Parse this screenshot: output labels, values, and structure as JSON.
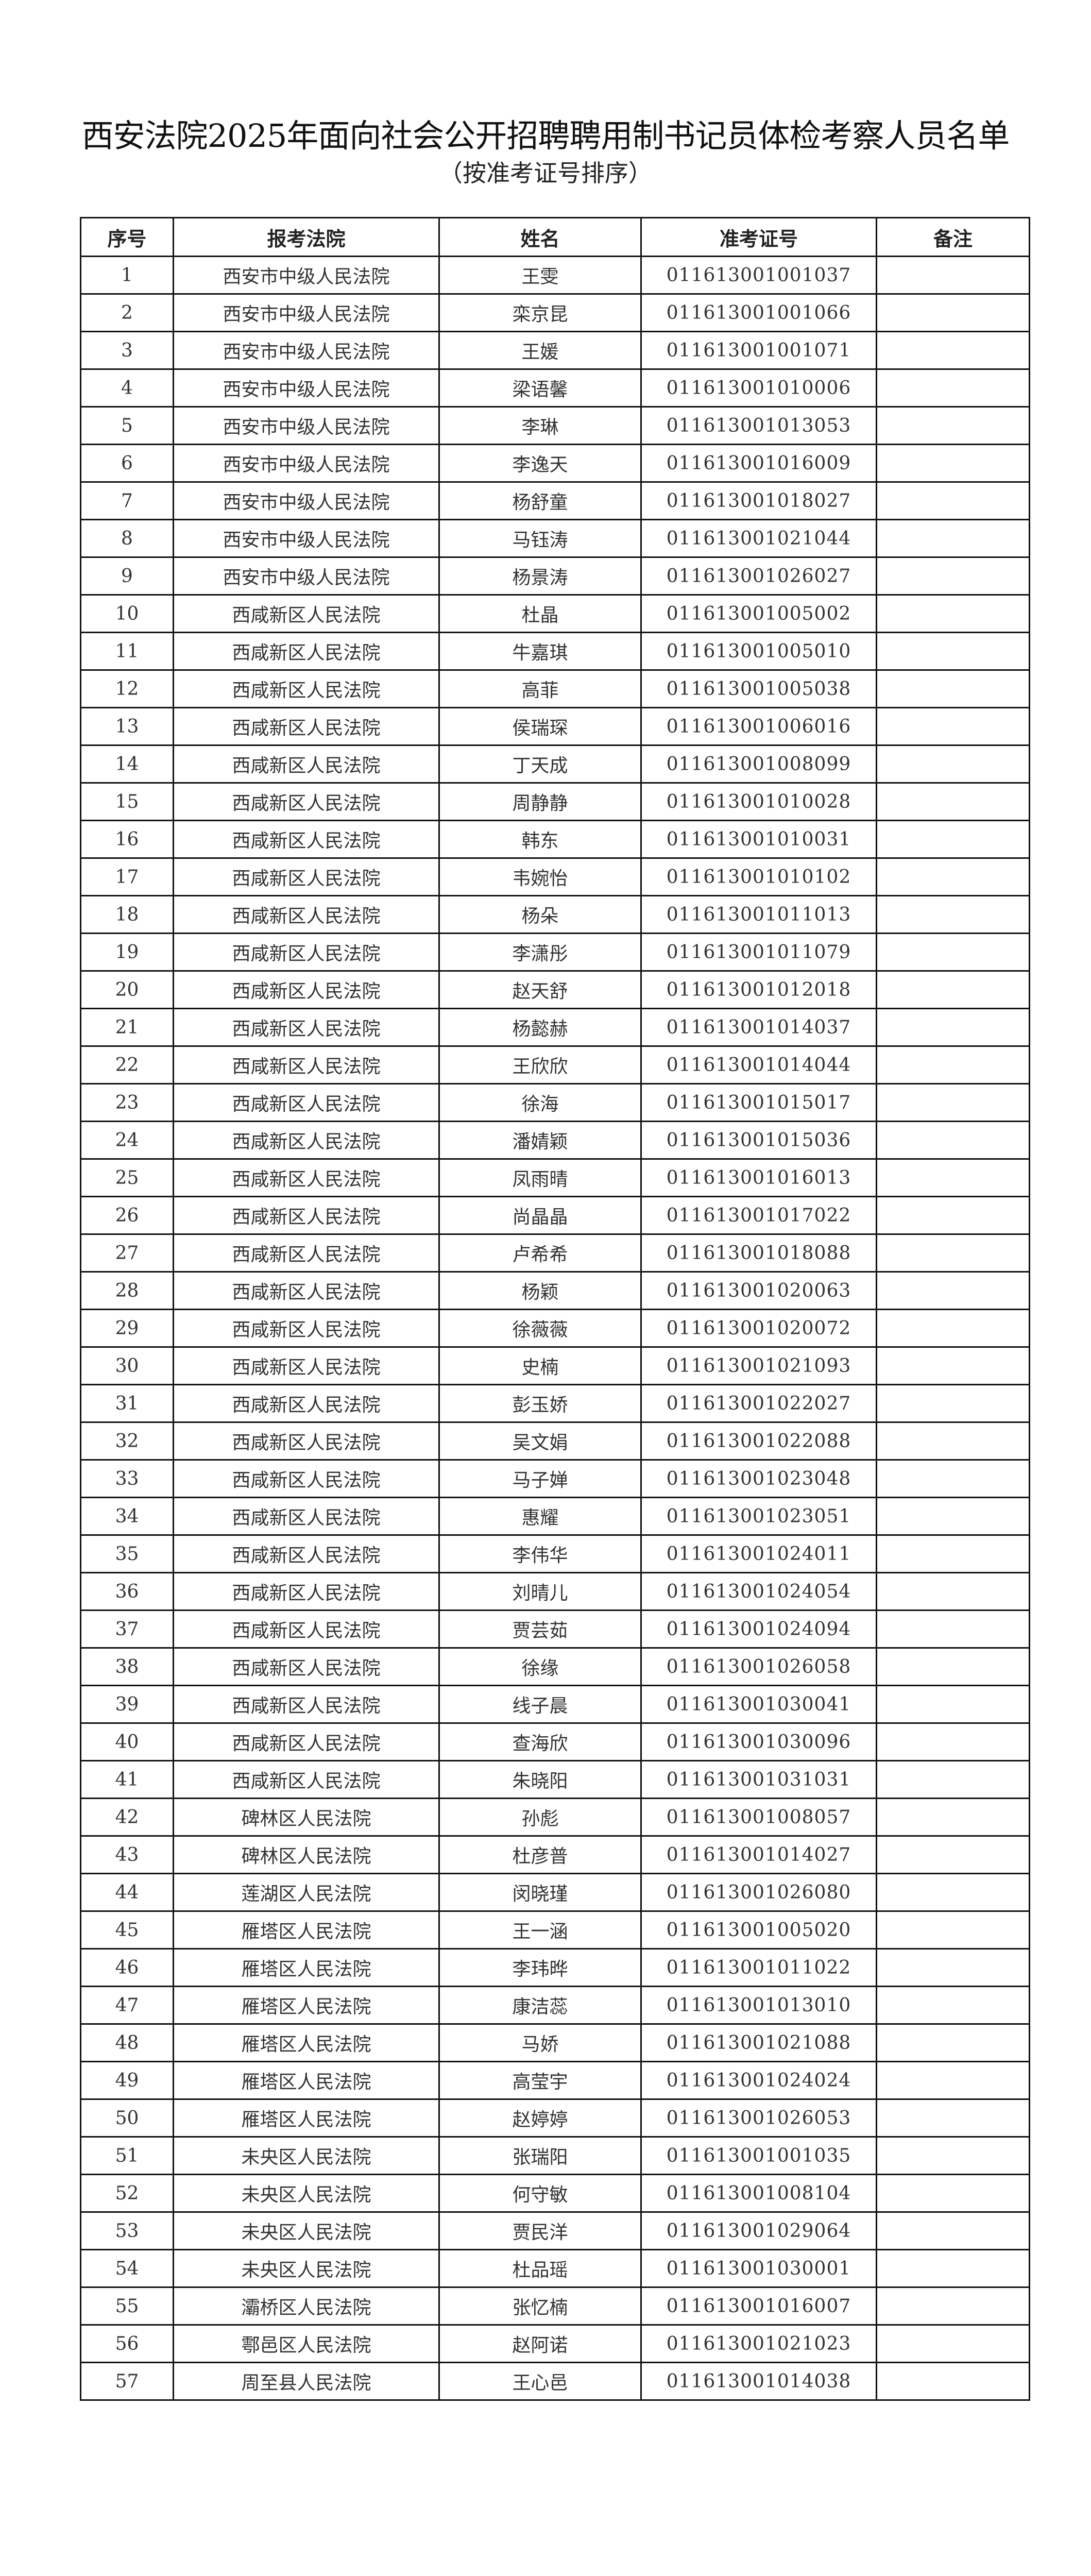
{
  "title": "西安法院2025年面向社会公开招聘聘用制书记员体检考察人员名单",
  "subtitle": "（按准考证号排序）",
  "table": {
    "headers": [
      "序号",
      "报考法院",
      "姓名",
      "准考证号",
      "备注"
    ],
    "rows": [
      [
        "1",
        "西安市中级人民法院",
        "王雯",
        "011613001001037",
        ""
      ],
      [
        "2",
        "西安市中级人民法院",
        "栾京昆",
        "011613001001066",
        ""
      ],
      [
        "3",
        "西安市中级人民法院",
        "王媛",
        "011613001001071",
        ""
      ],
      [
        "4",
        "西安市中级人民法院",
        "梁语馨",
        "011613001010006",
        ""
      ],
      [
        "5",
        "西安市中级人民法院",
        "李琳",
        "011613001013053",
        ""
      ],
      [
        "6",
        "西安市中级人民法院",
        "李逸天",
        "011613001016009",
        ""
      ],
      [
        "7",
        "西安市中级人民法院",
        "杨舒童",
        "011613001018027",
        ""
      ],
      [
        "8",
        "西安市中级人民法院",
        "马钰涛",
        "011613001021044",
        ""
      ],
      [
        "9",
        "西安市中级人民法院",
        "杨景涛",
        "011613001026027",
        ""
      ],
      [
        "10",
        "西咸新区人民法院",
        "杜晶",
        "011613001005002",
        ""
      ],
      [
        "11",
        "西咸新区人民法院",
        "牛嘉琪",
        "011613001005010",
        ""
      ],
      [
        "12",
        "西咸新区人民法院",
        "高菲",
        "011613001005038",
        ""
      ],
      [
        "13",
        "西咸新区人民法院",
        "侯瑞琛",
        "011613001006016",
        ""
      ],
      [
        "14",
        "西咸新区人民法院",
        "丁天成",
        "011613001008099",
        ""
      ],
      [
        "15",
        "西咸新区人民法院",
        "周静静",
        "011613001010028",
        ""
      ],
      [
        "16",
        "西咸新区人民法院",
        "韩东",
        "011613001010031",
        ""
      ],
      [
        "17",
        "西咸新区人民法院",
        "韦婉怡",
        "011613001010102",
        ""
      ],
      [
        "18",
        "西咸新区人民法院",
        "杨朵",
        "011613001011013",
        ""
      ],
      [
        "19",
        "西咸新区人民法院",
        "李潇彤",
        "011613001011079",
        ""
      ],
      [
        "20",
        "西咸新区人民法院",
        "赵天舒",
        "011613001012018",
        ""
      ],
      [
        "21",
        "西咸新区人民法院",
        "杨懿赫",
        "011613001014037",
        ""
      ],
      [
        "22",
        "西咸新区人民法院",
        "王欣欣",
        "011613001014044",
        ""
      ],
      [
        "23",
        "西咸新区人民法院",
        "徐海",
        "011613001015017",
        ""
      ],
      [
        "24",
        "西咸新区人民法院",
        "潘婧颖",
        "011613001015036",
        ""
      ],
      [
        "25",
        "西咸新区人民法院",
        "凤雨晴",
        "011613001016013",
        ""
      ],
      [
        "26",
        "西咸新区人民法院",
        "尚晶晶",
        "011613001017022",
        ""
      ],
      [
        "27",
        "西咸新区人民法院",
        "卢希希",
        "011613001018088",
        ""
      ],
      [
        "28",
        "西咸新区人民法院",
        "杨颖",
        "011613001020063",
        ""
      ],
      [
        "29",
        "西咸新区人民法院",
        "徐薇薇",
        "011613001020072",
        ""
      ],
      [
        "30",
        "西咸新区人民法院",
        "史楠",
        "011613001021093",
        ""
      ],
      [
        "31",
        "西咸新区人民法院",
        "彭玉娇",
        "011613001022027",
        ""
      ],
      [
        "32",
        "西咸新区人民法院",
        "吴文娟",
        "011613001022088",
        ""
      ],
      [
        "33",
        "西咸新区人民法院",
        "马子婵",
        "011613001023048",
        ""
      ],
      [
        "34",
        "西咸新区人民法院",
        "惠耀",
        "011613001023051",
        ""
      ],
      [
        "35",
        "西咸新区人民法院",
        "李伟华",
        "011613001024011",
        ""
      ],
      [
        "36",
        "西咸新区人民法院",
        "刘晴儿",
        "011613001024054",
        ""
      ],
      [
        "37",
        "西咸新区人民法院",
        "贾芸茹",
        "011613001024094",
        ""
      ],
      [
        "38",
        "西咸新区人民法院",
        "徐缘",
        "011613001026058",
        ""
      ],
      [
        "39",
        "西咸新区人民法院",
        "线子晨",
        "011613001030041",
        ""
      ],
      [
        "40",
        "西咸新区人民法院",
        "查海欣",
        "011613001030096",
        ""
      ],
      [
        "41",
        "西咸新区人民法院",
        "朱晓阳",
        "011613001031031",
        ""
      ],
      [
        "42",
        "碑林区人民法院",
        "孙彪",
        "011613001008057",
        ""
      ],
      [
        "43",
        "碑林区人民法院",
        "杜彦普",
        "011613001014027",
        ""
      ],
      [
        "44",
        "莲湖区人民法院",
        "闵晓瑾",
        "011613001026080",
        ""
      ],
      [
        "45",
        "雁塔区人民法院",
        "王一涵",
        "011613001005020",
        ""
      ],
      [
        "46",
        "雁塔区人民法院",
        "李玮晔",
        "011613001011022",
        ""
      ],
      [
        "47",
        "雁塔区人民法院",
        "康洁蕊",
        "011613001013010",
        ""
      ],
      [
        "48",
        "雁塔区人民法院",
        "马娇",
        "011613001021088",
        ""
      ],
      [
        "49",
        "雁塔区人民法院",
        "高莹宇",
        "011613001024024",
        ""
      ],
      [
        "50",
        "雁塔区人民法院",
        "赵婷婷",
        "011613001026053",
        ""
      ],
      [
        "51",
        "未央区人民法院",
        "张瑞阳",
        "011613001001035",
        ""
      ],
      [
        "52",
        "未央区人民法院",
        "何守敏",
        "011613001008104",
        ""
      ],
      [
        "53",
        "未央区人民法院",
        "贾民洋",
        "011613001029064",
        ""
      ],
      [
        "54",
        "未央区人民法院",
        "杜品瑶",
        "011613001030001",
        ""
      ],
      [
        "55",
        "灞桥区人民法院",
        "张忆楠",
        "011613001016007",
        ""
      ],
      [
        "56",
        "鄠邑区人民法院",
        "赵阿诺",
        "011613001021023",
        ""
      ],
      [
        "57",
        "周至县人民法院",
        "王心邑",
        "011613001014038",
        ""
      ]
    ]
  }
}
